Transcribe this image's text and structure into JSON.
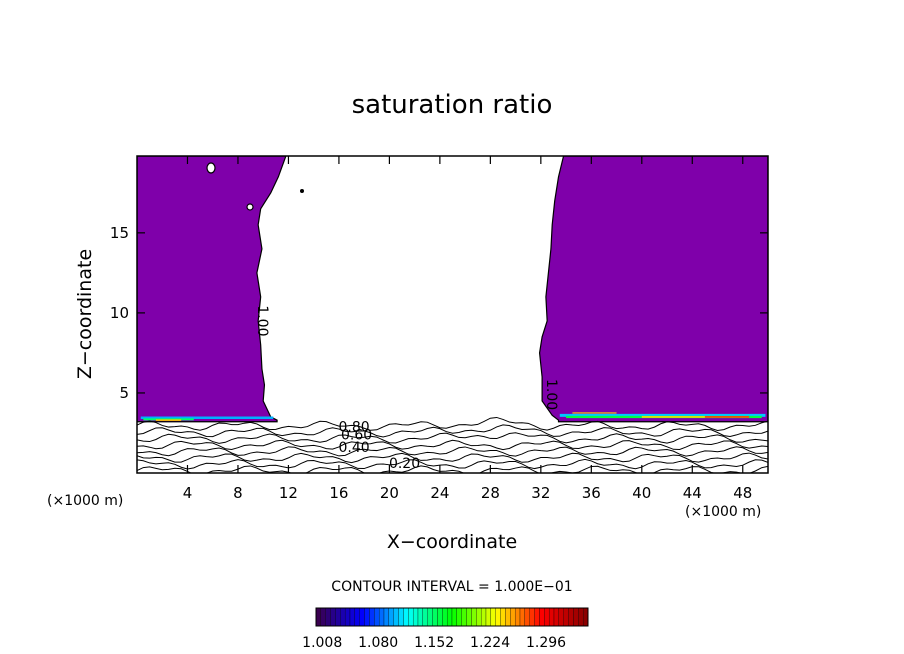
{
  "chart_data": {
    "type": "contour",
    "title": "saturation ratio",
    "xlabel": "X−coordinate",
    "ylabel": "Z−coordinate",
    "x_unit_left": "(×1000 m)",
    "x_unit_right": "(×1000 m)",
    "xlim": [
      0,
      50
    ],
    "ylim": [
      0,
      19.8
    ],
    "x_ticks": [
      4,
      8,
      12,
      16,
      20,
      24,
      28,
      32,
      36,
      40,
      44,
      48
    ],
    "y_ticks": [
      5,
      10,
      15
    ],
    "contour_interval_text": "CONTOUR INTERVAL = 1.000E−01",
    "contour_labels": [
      {
        "text": "1.00",
        "x": 9.6,
        "z": 9.5
      },
      {
        "text": "1.00",
        "x": 32.5,
        "z": 4.9
      },
      {
        "text": "0.80",
        "x": 17.2,
        "z": 2.6
      },
      {
        "text": "0.60",
        "x": 17.4,
        "z": 2.1
      },
      {
        "text": "0.40",
        "x": 17.2,
        "z": 1.3
      },
      {
        "text": "0.20",
        "x": 21.2,
        "z": 0.3
      }
    ],
    "contour_levels_below": [
      0.2,
      0.3,
      0.4,
      0.5,
      0.6,
      0.7,
      0.8,
      0.9
    ],
    "supersaturated_regions": [
      {
        "name": "left",
        "x_range": [
          0,
          11
        ],
        "z_range": [
          3.2,
          19.8
        ],
        "value": 1.0
      },
      {
        "name": "right",
        "x_range": [
          31.5,
          50
        ],
        "z_range": [
          3.2,
          19.8
        ],
        "value": 1.0
      }
    ],
    "colorbar": {
      "min": 1.0,
      "max": 1.35,
      "tick_labels": [
        "1.008",
        "1.080",
        "1.152",
        "1.224",
        "1.296"
      ],
      "colors": [
        "#3a0050",
        "#0000ff",
        "#00ffff",
        "#00ff00",
        "#ffff00",
        "#ff0000",
        "#8b0000"
      ]
    },
    "colors": {
      "supersaturated": "#7f00aa",
      "contour_line": "#000000"
    }
  }
}
